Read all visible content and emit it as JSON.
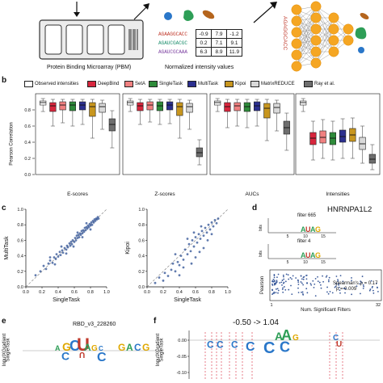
{
  "panel_a": {
    "pbm_caption": "Protein Binding Microarray (PBM)",
    "matrix_caption": "Normalized intensity values",
    "sequences": [
      {
        "seq": "AGAAGGCACC",
        "color": "#c0392b"
      },
      {
        "seq": "AGAUCGACGC",
        "color": "#1e8f6e"
      },
      {
        "seq": "AGAUCGCAAA",
        "color": "#7b3fa0"
      }
    ],
    "matrix": [
      [
        "-0.9",
        "7.9",
        "-1.2"
      ],
      [
        "0.2",
        "7.1",
        "9.1"
      ],
      [
        "6.3",
        "8.9",
        "11.9"
      ]
    ],
    "network_input_seq": "AGAGGCACC",
    "node_color": "#f5a623"
  },
  "panel_b": {
    "letter": "b",
    "legend": [
      {
        "label": "Observed intensities",
        "color": "#ffffff"
      },
      {
        "label": "DeepBind",
        "color": "#d7263d"
      },
      {
        "label": "SetA",
        "color": "#f08080"
      },
      {
        "label": "SingleTask",
        "color": "#2e8b3a"
      },
      {
        "label": "MultiTask",
        "color": "#2b2f8f"
      },
      {
        "label": "Kipoi",
        "color": "#c8961e"
      },
      {
        "label": "MatrixREDUCE",
        "color": "#d9d9d9"
      },
      {
        "label": "Ray et al.",
        "color": "#6e6e6e"
      }
    ],
    "ylabel": "Pearson Correlation",
    "yticks": [
      "0.0",
      "0.2",
      "0.4",
      "0.6",
      "0.8"
    ]
  },
  "panel_c": {
    "letter": "c",
    "left": {
      "xlabel": "SingleTask",
      "ylabel": "MultiTask"
    },
    "right": {
      "xlabel": "SingleTask",
      "ylabel": "Kipoi"
    },
    "ticks": [
      "0.0",
      "0.2",
      "0.4",
      "0.6",
      "0.8",
      "1.0"
    ]
  },
  "panel_d": {
    "letter": "d",
    "title": "HNRNPA1L2",
    "filter_top": "filter 665",
    "filter_bottom": "filter 4",
    "bits_label": "bits",
    "logo_ticks": [
      "5",
      "10",
      "15"
    ],
    "scatter_ylabel": "Pearson",
    "spearman": "Spearman's ρ = 0.17",
    "pvalue": "p = 0.009",
    "xlabel": "Num. Significant Filters",
    "x_min": "1",
    "x_max": "32"
  },
  "panel_e": {
    "letter": "e",
    "title": "RBD_v3_228260",
    "ylabel_1": "InputXGradient",
    "ylabel_2": "SingleTask"
  },
  "panel_f": {
    "letter": "f",
    "title": "-0.50 -> 1.04",
    "ylabel_1": "InputXGradient",
    "ylabel_2": "SingleTask",
    "yticks": [
      "0.00",
      "-0.05",
      "-0.10"
    ]
  },
  "chart_data": [
    {
      "type": "box",
      "groups": [
        "E-scores",
        "Z-scores",
        "AUCs",
        "Intensities"
      ],
      "ylim": [
        0,
        1
      ],
      "ylabel": "Pearson Correlation",
      "series_per_group": [
        {
          "group": "E-scores",
          "boxes": [
            {
              "method": "Observed intensities",
              "q1": 0.86,
              "median": 0.89,
              "q3": 0.91,
              "low": 0.78,
              "high": 0.94
            },
            {
              "method": "DeepBind",
              "q1": 0.78,
              "median": 0.85,
              "q3": 0.89,
              "low": 0.6,
              "high": 0.93
            },
            {
              "method": "SetA",
              "q1": 0.8,
              "median": 0.86,
              "q3": 0.9,
              "low": 0.64,
              "high": 0.93
            },
            {
              "method": "SingleTask",
              "q1": 0.79,
              "median": 0.86,
              "q3": 0.9,
              "low": 0.6,
              "high": 0.93
            },
            {
              "method": "MultiTask",
              "q1": 0.8,
              "median": 0.86,
              "q3": 0.9,
              "low": 0.62,
              "high": 0.93
            },
            {
              "method": "Kipoi",
              "q1": 0.72,
              "median": 0.84,
              "q3": 0.89,
              "low": 0.45,
              "high": 0.93
            },
            {
              "method": "MatrixREDUCE",
              "q1": 0.77,
              "median": 0.84,
              "q3": 0.88,
              "low": 0.56,
              "high": 0.92
            },
            {
              "method": "Ray et al.",
              "q1": 0.54,
              "median": 0.62,
              "q3": 0.69,
              "low": 0.33,
              "high": 0.79
            }
          ]
        },
        {
          "group": "Z-scores",
          "boxes": [
            {
              "method": "Observed intensities",
              "q1": 0.86,
              "median": 0.89,
              "q3": 0.91,
              "low": 0.78,
              "high": 0.94
            },
            {
              "method": "DeepBind",
              "q1": 0.79,
              "median": 0.85,
              "q3": 0.89,
              "low": 0.62,
              "high": 0.93
            },
            {
              "method": "SetA",
              "q1": 0.8,
              "median": 0.86,
              "q3": 0.9,
              "low": 0.65,
              "high": 0.93
            },
            {
              "method": "SingleTask",
              "q1": 0.79,
              "median": 0.85,
              "q3": 0.9,
              "low": 0.62,
              "high": 0.93
            },
            {
              "method": "MultiTask",
              "q1": 0.8,
              "median": 0.86,
              "q3": 0.9,
              "low": 0.63,
              "high": 0.93
            },
            {
              "method": "Kipoi",
              "q1": 0.73,
              "median": 0.84,
              "q3": 0.89,
              "low": 0.45,
              "high": 0.93
            },
            {
              "method": "MatrixREDUCE",
              "q1": 0.77,
              "median": 0.84,
              "q3": 0.88,
              "low": 0.56,
              "high": 0.92
            },
            {
              "method": "Ray et al.",
              "q1": 0.22,
              "median": 0.27,
              "q3": 0.33,
              "low": 0.12,
              "high": 0.43
            }
          ]
        },
        {
          "group": "AUCs",
          "boxes": [
            {
              "method": "Observed intensities",
              "q1": 0.86,
              "median": 0.89,
              "q3": 0.91,
              "low": 0.78,
              "high": 0.94
            },
            {
              "method": "DeepBind",
              "q1": 0.78,
              "median": 0.84,
              "q3": 0.89,
              "low": 0.58,
              "high": 0.93
            },
            {
              "method": "SetA",
              "q1": 0.79,
              "median": 0.85,
              "q3": 0.89,
              "low": 0.6,
              "high": 0.93
            },
            {
              "method": "SingleTask",
              "q1": 0.78,
              "median": 0.84,
              "q3": 0.89,
              "low": 0.58,
              "high": 0.93
            },
            {
              "method": "MultiTask",
              "q1": 0.79,
              "median": 0.85,
              "q3": 0.9,
              "low": 0.6,
              "high": 0.93
            },
            {
              "method": "Kipoi",
              "q1": 0.7,
              "median": 0.82,
              "q3": 0.88,
              "low": 0.42,
              "high": 0.93
            },
            {
              "method": "MatrixREDUCE",
              "q1": 0.76,
              "median": 0.83,
              "q3": 0.88,
              "low": 0.54,
              "high": 0.92
            },
            {
              "method": "Ray et al.",
              "q1": 0.5,
              "median": 0.58,
              "q3": 0.66,
              "low": 0.3,
              "high": 0.76
            }
          ]
        },
        {
          "group": "Intensities",
          "boxes": [
            {
              "method": "Observed intensities",
              "q1": 0.86,
              "median": 0.89,
              "q3": 0.91,
              "low": 0.78,
              "high": 0.94
            },
            {
              "method": "DeepBind",
              "q1": 0.37,
              "median": 0.45,
              "q3": 0.52,
              "low": 0.18,
              "high": 0.66
            },
            {
              "method": "SetA",
              "q1": 0.39,
              "median": 0.46,
              "q3": 0.54,
              "low": 0.2,
              "high": 0.68
            },
            {
              "method": "SingleTask",
              "q1": 0.37,
              "median": 0.45,
              "q3": 0.52,
              "low": 0.18,
              "high": 0.66
            },
            {
              "method": "MultiTask",
              "q1": 0.4,
              "median": 0.47,
              "q3": 0.55,
              "low": 0.2,
              "high": 0.69
            },
            {
              "method": "Kipoi",
              "q1": 0.41,
              "median": 0.49,
              "q3": 0.57,
              "low": 0.2,
              "high": 0.7
            },
            {
              "method": "MatrixREDUCE",
              "q1": 0.31,
              "median": 0.38,
              "q3": 0.46,
              "low": 0.14,
              "high": 0.6
            },
            {
              "method": "Ray et al.",
              "q1": 0.14,
              "median": 0.19,
              "q3": 0.25,
              "low": 0.06,
              "high": 0.37
            }
          ]
        }
      ]
    },
    {
      "type": "scatter",
      "xlabel": "SingleTask",
      "ylabel": "MultiTask",
      "xlim": [
        0,
        1
      ],
      "ylim": [
        0,
        1
      ],
      "reference_line": "y = x",
      "points": [
        [
          0.12,
          0.15
        ],
        [
          0.18,
          0.2
        ],
        [
          0.22,
          0.27
        ],
        [
          0.25,
          0.23
        ],
        [
          0.28,
          0.3
        ],
        [
          0.3,
          0.34
        ],
        [
          0.33,
          0.31
        ],
        [
          0.35,
          0.38
        ],
        [
          0.37,
          0.36
        ],
        [
          0.38,
          0.42
        ],
        [
          0.4,
          0.39
        ],
        [
          0.42,
          0.45
        ],
        [
          0.43,
          0.41
        ],
        [
          0.45,
          0.47
        ],
        [
          0.46,
          0.44
        ],
        [
          0.48,
          0.5
        ],
        [
          0.5,
          0.48
        ],
        [
          0.51,
          0.53
        ],
        [
          0.52,
          0.51
        ],
        [
          0.54,
          0.56
        ],
        [
          0.55,
          0.53
        ],
        [
          0.56,
          0.58
        ],
        [
          0.57,
          0.55
        ],
        [
          0.58,
          0.6
        ],
        [
          0.6,
          0.58
        ],
        [
          0.61,
          0.63
        ],
        [
          0.62,
          0.6
        ],
        [
          0.63,
          0.66
        ],
        [
          0.64,
          0.63
        ],
        [
          0.65,
          0.67
        ],
        [
          0.66,
          0.64
        ],
        [
          0.67,
          0.69
        ],
        [
          0.68,
          0.67
        ],
        [
          0.69,
          0.72
        ],
        [
          0.7,
          0.69
        ],
        [
          0.71,
          0.73
        ],
        [
          0.72,
          0.71
        ],
        [
          0.73,
          0.76
        ],
        [
          0.74,
          0.73
        ],
        [
          0.75,
          0.77
        ],
        [
          0.76,
          0.75
        ],
        [
          0.77,
          0.79
        ],
        [
          0.78,
          0.77
        ],
        [
          0.79,
          0.81
        ],
        [
          0.8,
          0.79
        ],
        [
          0.81,
          0.83
        ],
        [
          0.82,
          0.8
        ],
        [
          0.83,
          0.85
        ],
        [
          0.84,
          0.83
        ],
        [
          0.85,
          0.87
        ],
        [
          0.86,
          0.85
        ],
        [
          0.87,
          0.88
        ],
        [
          0.88,
          0.87
        ],
        [
          0.89,
          0.9
        ],
        [
          0.9,
          0.88
        ],
        [
          0.59,
          0.52
        ],
        [
          0.64,
          0.7
        ],
        [
          0.7,
          0.64
        ],
        [
          0.75,
          0.82
        ],
        [
          0.8,
          0.74
        ],
        [
          0.44,
          0.52
        ],
        [
          0.5,
          0.43
        ],
        [
          0.36,
          0.29
        ],
        [
          0.3,
          0.38
        ]
      ]
    },
    {
      "type": "scatter",
      "xlabel": "SingleTask",
      "ylabel": "Kipoi",
      "xlim": [
        0,
        1
      ],
      "ylim": [
        0,
        1
      ],
      "reference_line": "y = x",
      "points": [
        [
          0.1,
          0.05
        ],
        [
          0.15,
          0.12
        ],
        [
          0.2,
          0.08
        ],
        [
          0.22,
          0.18
        ],
        [
          0.26,
          0.14
        ],
        [
          0.3,
          0.22
        ],
        [
          0.32,
          0.3
        ],
        [
          0.35,
          0.2
        ],
        [
          0.38,
          0.32
        ],
        [
          0.4,
          0.28
        ],
        [
          0.42,
          0.4
        ],
        [
          0.45,
          0.35
        ],
        [
          0.47,
          0.48
        ],
        [
          0.5,
          0.42
        ],
        [
          0.52,
          0.55
        ],
        [
          0.54,
          0.46
        ],
        [
          0.56,
          0.6
        ],
        [
          0.58,
          0.52
        ],
        [
          0.6,
          0.64
        ],
        [
          0.62,
          0.57
        ],
        [
          0.64,
          0.68
        ],
        [
          0.66,
          0.62
        ],
        [
          0.68,
          0.72
        ],
        [
          0.7,
          0.66
        ],
        [
          0.72,
          0.76
        ],
        [
          0.74,
          0.7
        ],
        [
          0.76,
          0.8
        ],
        [
          0.78,
          0.74
        ],
        [
          0.8,
          0.83
        ],
        [
          0.82,
          0.78
        ],
        [
          0.84,
          0.86
        ],
        [
          0.86,
          0.82
        ],
        [
          0.88,
          0.88
        ],
        [
          0.55,
          0.3
        ],
        [
          0.6,
          0.38
        ],
        [
          0.65,
          0.45
        ],
        [
          0.7,
          0.5
        ],
        [
          0.5,
          0.62
        ],
        [
          0.45,
          0.25
        ],
        [
          0.4,
          0.15
        ],
        [
          0.75,
          0.6
        ],
        [
          0.8,
          0.68
        ],
        [
          0.35,
          0.42
        ],
        [
          0.58,
          0.7
        ],
        [
          0.67,
          0.78
        ]
      ]
    },
    {
      "type": "scatter",
      "xlabel": "Num. Significant Filters",
      "ylabel": "Pearson",
      "xlim": [
        1,
        32
      ],
      "annotations": [
        "Spearman's ρ = 0.17",
        "p = 0.009"
      ]
    }
  ]
}
